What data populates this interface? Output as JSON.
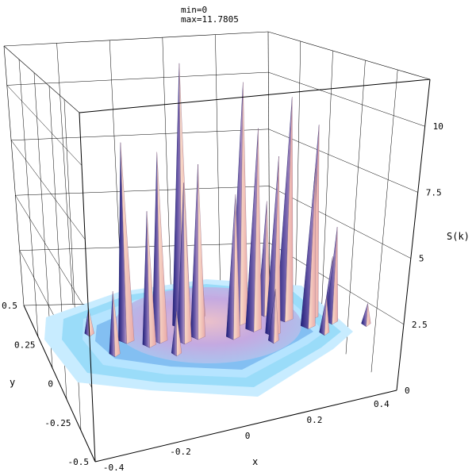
{
  "header": {
    "min_text": "min=0",
    "max_text": "max=11.7805"
  },
  "chart_data": {
    "type": "surface3d",
    "zlabel": "S(k)",
    "xlabel": "x",
    "ylabel": "y",
    "x_ticks": [
      "-0.4",
      "-0.2",
      "0",
      "0.2",
      "0.4"
    ],
    "y_ticks": [
      "0.5",
      "0.25",
      "0",
      "-0.25",
      "-0.5"
    ],
    "z_ticks": [
      "0",
      "2.5",
      "5",
      "7.5",
      "10"
    ],
    "xlim": [
      -0.45,
      0.45
    ],
    "ylim": [
      -0.5,
      0.5
    ],
    "zlim": [
      0,
      11.7805
    ],
    "grid": true,
    "colors": {
      "peak_light": "#f4c8b4",
      "peak_dark": "#2a2a8c",
      "surface_mid": "#c8a0d8",
      "base_cyan": "#8fd8f8",
      "base_light": "#c8ecff",
      "base_blue": "#5aa0e8"
    },
    "peaks": [
      {
        "x": -0.02,
        "y": 0.08,
        "z": 11.78
      },
      {
        "x": 0.16,
        "y": 0.05,
        "z": 10.9
      },
      {
        "x": 0.3,
        "y": 0.03,
        "z": 10.2
      },
      {
        "x": 0.18,
        "y": -0.02,
        "z": 9.2
      },
      {
        "x": -0.22,
        "y": 0.02,
        "z": 9.0
      },
      {
        "x": 0.38,
        "y": 0.02,
        "z": 9.0
      },
      {
        "x": -0.12,
        "y": -0.01,
        "z": 8.6
      },
      {
        "x": 0.22,
        "y": -0.08,
        "z": 8.2
      },
      {
        "x": 0.0,
        "y": -0.02,
        "z": 8.0
      },
      {
        "x": 0.34,
        "y": -0.06,
        "z": 7.6
      },
      {
        "x": -0.05,
        "y": -0.04,
        "z": 7.4
      },
      {
        "x": 0.1,
        "y": -0.06,
        "z": 6.8
      },
      {
        "x": -0.16,
        "y": -0.03,
        "z": 6.4
      },
      {
        "x": 0.26,
        "y": 0.1,
        "z": 5.8
      },
      {
        "x": 0.42,
        "y": -0.05,
        "z": 5.0
      },
      {
        "x": -0.08,
        "y": 0.12,
        "z": 4.6
      },
      {
        "x": 0.06,
        "y": 0.14,
        "z": 4.2
      },
      {
        "x": -0.28,
        "y": -0.06,
        "z": 3.6
      },
      {
        "x": 0.46,
        "y": 0.06,
        "z": 3.4
      },
      {
        "x": 0.2,
        "y": -0.14,
        "z": 3.2
      },
      {
        "x": -0.1,
        "y": -0.12,
        "z": 2.8
      },
      {
        "x": 0.36,
        "y": -0.14,
        "z": 2.6
      },
      {
        "x": -0.32,
        "y": 0.1,
        "z": 2.2
      },
      {
        "x": 0.5,
        "y": -0.12,
        "z": 2.0
      }
    ]
  }
}
